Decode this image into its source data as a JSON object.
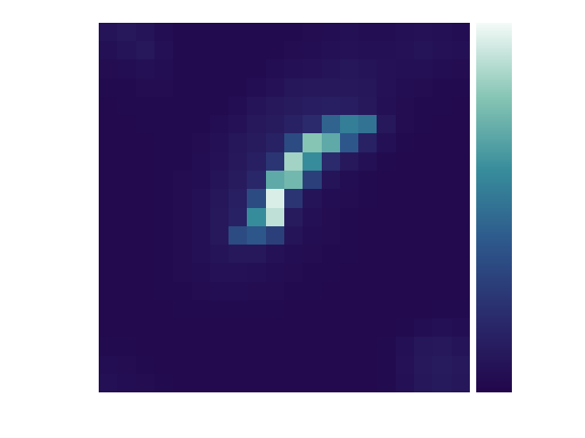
{
  "chart_data": {
    "type": "heatmap",
    "tick_labels": false,
    "cells": [
      [
        0.08,
        0.1,
        0.08,
        0.05,
        0.03,
        0.03,
        0.03,
        0.03,
        0.03,
        0.03,
        0.03,
        0.04,
        0.05,
        0.06,
        0.05,
        0.05,
        0.06,
        0.07,
        0.06,
        0.05
      ],
      [
        0.06,
        0.08,
        0.1,
        0.06,
        0.03,
        0.03,
        0.03,
        0.03,
        0.03,
        0.03,
        0.04,
        0.05,
        0.06,
        0.07,
        0.06,
        0.06,
        0.07,
        0.08,
        0.07,
        0.06
      ],
      [
        0.04,
        0.05,
        0.06,
        0.05,
        0.03,
        0.03,
        0.03,
        0.03,
        0.03,
        0.05,
        0.06,
        0.07,
        0.08,
        0.09,
        0.08,
        0.07,
        0.06,
        0.06,
        0.05,
        0.04
      ],
      [
        0.03,
        0.03,
        0.04,
        0.04,
        0.03,
        0.03,
        0.03,
        0.03,
        0.05,
        0.07,
        0.09,
        0.1,
        0.1,
        0.1,
        0.09,
        0.07,
        0.05,
        0.04,
        0.03,
        0.03
      ],
      [
        0.02,
        0.03,
        0.03,
        0.03,
        0.03,
        0.03,
        0.03,
        0.05,
        0.08,
        0.1,
        0.12,
        0.13,
        0.14,
        0.13,
        0.1,
        0.06,
        0.04,
        0.03,
        0.03,
        0.02
      ],
      [
        0.02,
        0.02,
        0.03,
        0.03,
        0.03,
        0.03,
        0.05,
        0.07,
        0.1,
        0.12,
        0.15,
        0.2,
        0.45,
        0.55,
        0.5,
        0.1,
        0.04,
        0.03,
        0.02,
        0.02
      ],
      [
        0.02,
        0.02,
        0.02,
        0.03,
        0.03,
        0.04,
        0.06,
        0.09,
        0.12,
        0.15,
        0.35,
        0.8,
        0.7,
        0.4,
        0.15,
        0.06,
        0.03,
        0.02,
        0.02,
        0.02
      ],
      [
        0.02,
        0.02,
        0.02,
        0.03,
        0.03,
        0.05,
        0.07,
        0.1,
        0.14,
        0.25,
        0.85,
        0.6,
        0.2,
        0.1,
        0.06,
        0.03,
        0.02,
        0.02,
        0.02,
        0.02
      ],
      [
        0.02,
        0.02,
        0.02,
        0.03,
        0.04,
        0.05,
        0.08,
        0.12,
        0.18,
        0.7,
        0.75,
        0.3,
        0.08,
        0.05,
        0.03,
        0.02,
        0.02,
        0.02,
        0.02,
        0.02
      ],
      [
        0.02,
        0.02,
        0.02,
        0.03,
        0.04,
        0.06,
        0.09,
        0.14,
        0.35,
        0.95,
        0.25,
        0.08,
        0.05,
        0.04,
        0.03,
        0.02,
        0.02,
        0.02,
        0.02,
        0.02
      ],
      [
        0.02,
        0.02,
        0.02,
        0.03,
        0.04,
        0.06,
        0.1,
        0.15,
        0.6,
        0.9,
        0.12,
        0.06,
        0.04,
        0.03,
        0.02,
        0.02,
        0.02,
        0.02,
        0.02,
        0.02
      ],
      [
        0.02,
        0.02,
        0.02,
        0.03,
        0.04,
        0.06,
        0.1,
        0.35,
        0.4,
        0.3,
        0.08,
        0.05,
        0.04,
        0.03,
        0.02,
        0.02,
        0.02,
        0.02,
        0.02,
        0.02
      ],
      [
        0.02,
        0.02,
        0.02,
        0.03,
        0.04,
        0.06,
        0.08,
        0.1,
        0.1,
        0.07,
        0.05,
        0.04,
        0.03,
        0.03,
        0.02,
        0.02,
        0.02,
        0.02,
        0.02,
        0.02
      ],
      [
        0.02,
        0.02,
        0.02,
        0.03,
        0.04,
        0.05,
        0.07,
        0.07,
        0.06,
        0.05,
        0.04,
        0.03,
        0.03,
        0.02,
        0.02,
        0.02,
        0.02,
        0.02,
        0.02,
        0.02
      ],
      [
        0.02,
        0.02,
        0.02,
        0.03,
        0.03,
        0.04,
        0.05,
        0.05,
        0.04,
        0.04,
        0.03,
        0.03,
        0.02,
        0.02,
        0.02,
        0.02,
        0.02,
        0.02,
        0.02,
        0.02
      ],
      [
        0.02,
        0.02,
        0.02,
        0.02,
        0.03,
        0.03,
        0.03,
        0.03,
        0.03,
        0.03,
        0.02,
        0.02,
        0.02,
        0.02,
        0.02,
        0.02,
        0.02,
        0.02,
        0.03,
        0.03
      ],
      [
        0.02,
        0.02,
        0.02,
        0.02,
        0.02,
        0.02,
        0.02,
        0.02,
        0.02,
        0.02,
        0.02,
        0.02,
        0.02,
        0.02,
        0.02,
        0.02,
        0.03,
        0.05,
        0.06,
        0.05
      ],
      [
        0.03,
        0.03,
        0.02,
        0.02,
        0.02,
        0.02,
        0.02,
        0.02,
        0.02,
        0.02,
        0.02,
        0.02,
        0.02,
        0.02,
        0.02,
        0.03,
        0.06,
        0.09,
        0.1,
        0.08
      ],
      [
        0.05,
        0.04,
        0.03,
        0.02,
        0.02,
        0.02,
        0.02,
        0.02,
        0.02,
        0.02,
        0.02,
        0.02,
        0.02,
        0.02,
        0.02,
        0.03,
        0.07,
        0.1,
        0.12,
        0.1
      ],
      [
        0.06,
        0.05,
        0.04,
        0.03,
        0.02,
        0.02,
        0.02,
        0.02,
        0.02,
        0.02,
        0.02,
        0.02,
        0.02,
        0.02,
        0.02,
        0.03,
        0.06,
        0.09,
        0.11,
        0.09
      ]
    ],
    "colorbar_range": [
      0,
      1
    ]
  }
}
